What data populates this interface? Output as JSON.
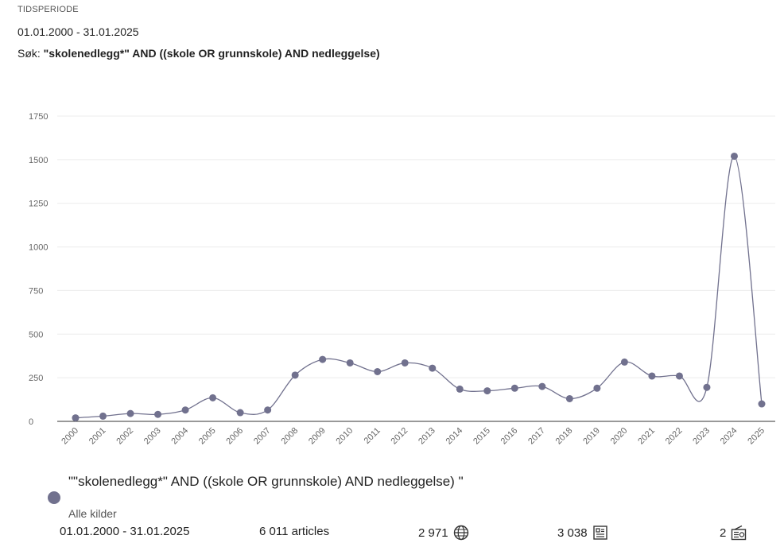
{
  "header": {
    "period_label": "TIDSPERIODE",
    "period_value": "01.01.2000 - 31.01.2025",
    "search_prefix": "Søk: ",
    "search_query": "\"skolenedlegg*\" AND ((skole OR grunnskole) AND nedleggelse)"
  },
  "chart_data": {
    "type": "line",
    "categories": [
      "2000",
      "2001",
      "2002",
      "2003",
      "2004",
      "2005",
      "2006",
      "2007",
      "2008",
      "2009",
      "2010",
      "2011",
      "2012",
      "2013",
      "2014",
      "2015",
      "2016",
      "2017",
      "2018",
      "2019",
      "2020",
      "2021",
      "2022",
      "2023",
      "2024",
      "2025"
    ],
    "series": [
      {
        "name": "\"\"skolenedlegg*\" AND ((skole OR grunnskole) AND nedleggelse) \"",
        "values": [
          20,
          30,
          45,
          40,
          65,
          135,
          50,
          65,
          265,
          355,
          335,
          285,
          335,
          305,
          185,
          175,
          190,
          200,
          130,
          190,
          340,
          260,
          260,
          195,
          1520,
          100
        ],
        "color": "#71718e"
      }
    ],
    "ylim": [
      0,
      1750
    ],
    "yticks": [
      0,
      250,
      500,
      750,
      1000,
      1250,
      1500,
      1750
    ],
    "grid": true,
    "smooth": true
  },
  "legend": {
    "series_label": "\"\"skolenedlegg*\" AND ((skole OR grunnskole) AND nedleggelse) \"",
    "sources": "Alle kilder"
  },
  "stats": {
    "period": "01.01.2000 - 31.01.2025",
    "articles": "6 011 articles",
    "web_count": "2 971",
    "print_count": "3 038",
    "broadcast_count": "2",
    "web_icon": "globe-icon",
    "print_icon": "newspaper-icon",
    "broadcast_icon": "radio-icon"
  }
}
